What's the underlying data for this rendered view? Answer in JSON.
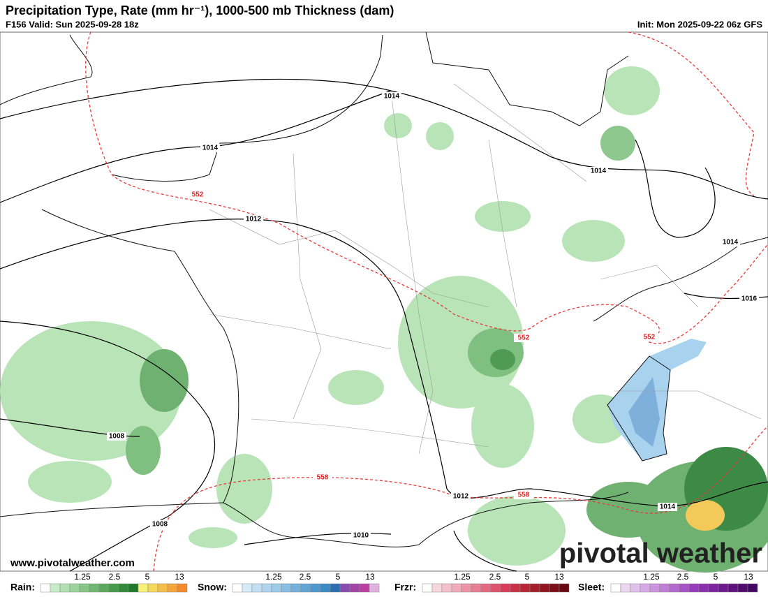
{
  "header": {
    "title": "Precipitation Type, Rate (mm hr⁻¹), 1000-500 mb Thickness (dam)",
    "valid": "F156 Valid: Sun 2025-09-28 18z",
    "init": "Init: Mon 2025-09-22 06z GFS"
  },
  "map": {
    "isobar_labels": [
      "1014",
      "1014",
      "1014",
      "1012",
      "1014",
      "1016",
      "1008",
      "1008",
      "1010",
      "1012",
      "1014"
    ],
    "thickness_labels": [
      "552",
      "552",
      "552",
      "558",
      "558"
    ]
  },
  "footer": {
    "website": "www.pivotalweather.com",
    "logo": "pivotal weather"
  },
  "legend": [
    {
      "label": "Rain:",
      "ticks": [
        "1.25",
        "2.5",
        "5",
        "13"
      ]
    },
    {
      "label": "Snow:",
      "ticks": [
        "1.25",
        "2.5",
        "5",
        "13"
      ]
    },
    {
      "label": "Frzr:",
      "ticks": [
        "1.25",
        "2.5",
        "5",
        "13"
      ]
    },
    {
      "label": "Sleet:",
      "ticks": [
        "1.25",
        "2.5",
        "5",
        "13"
      ]
    }
  ]
}
